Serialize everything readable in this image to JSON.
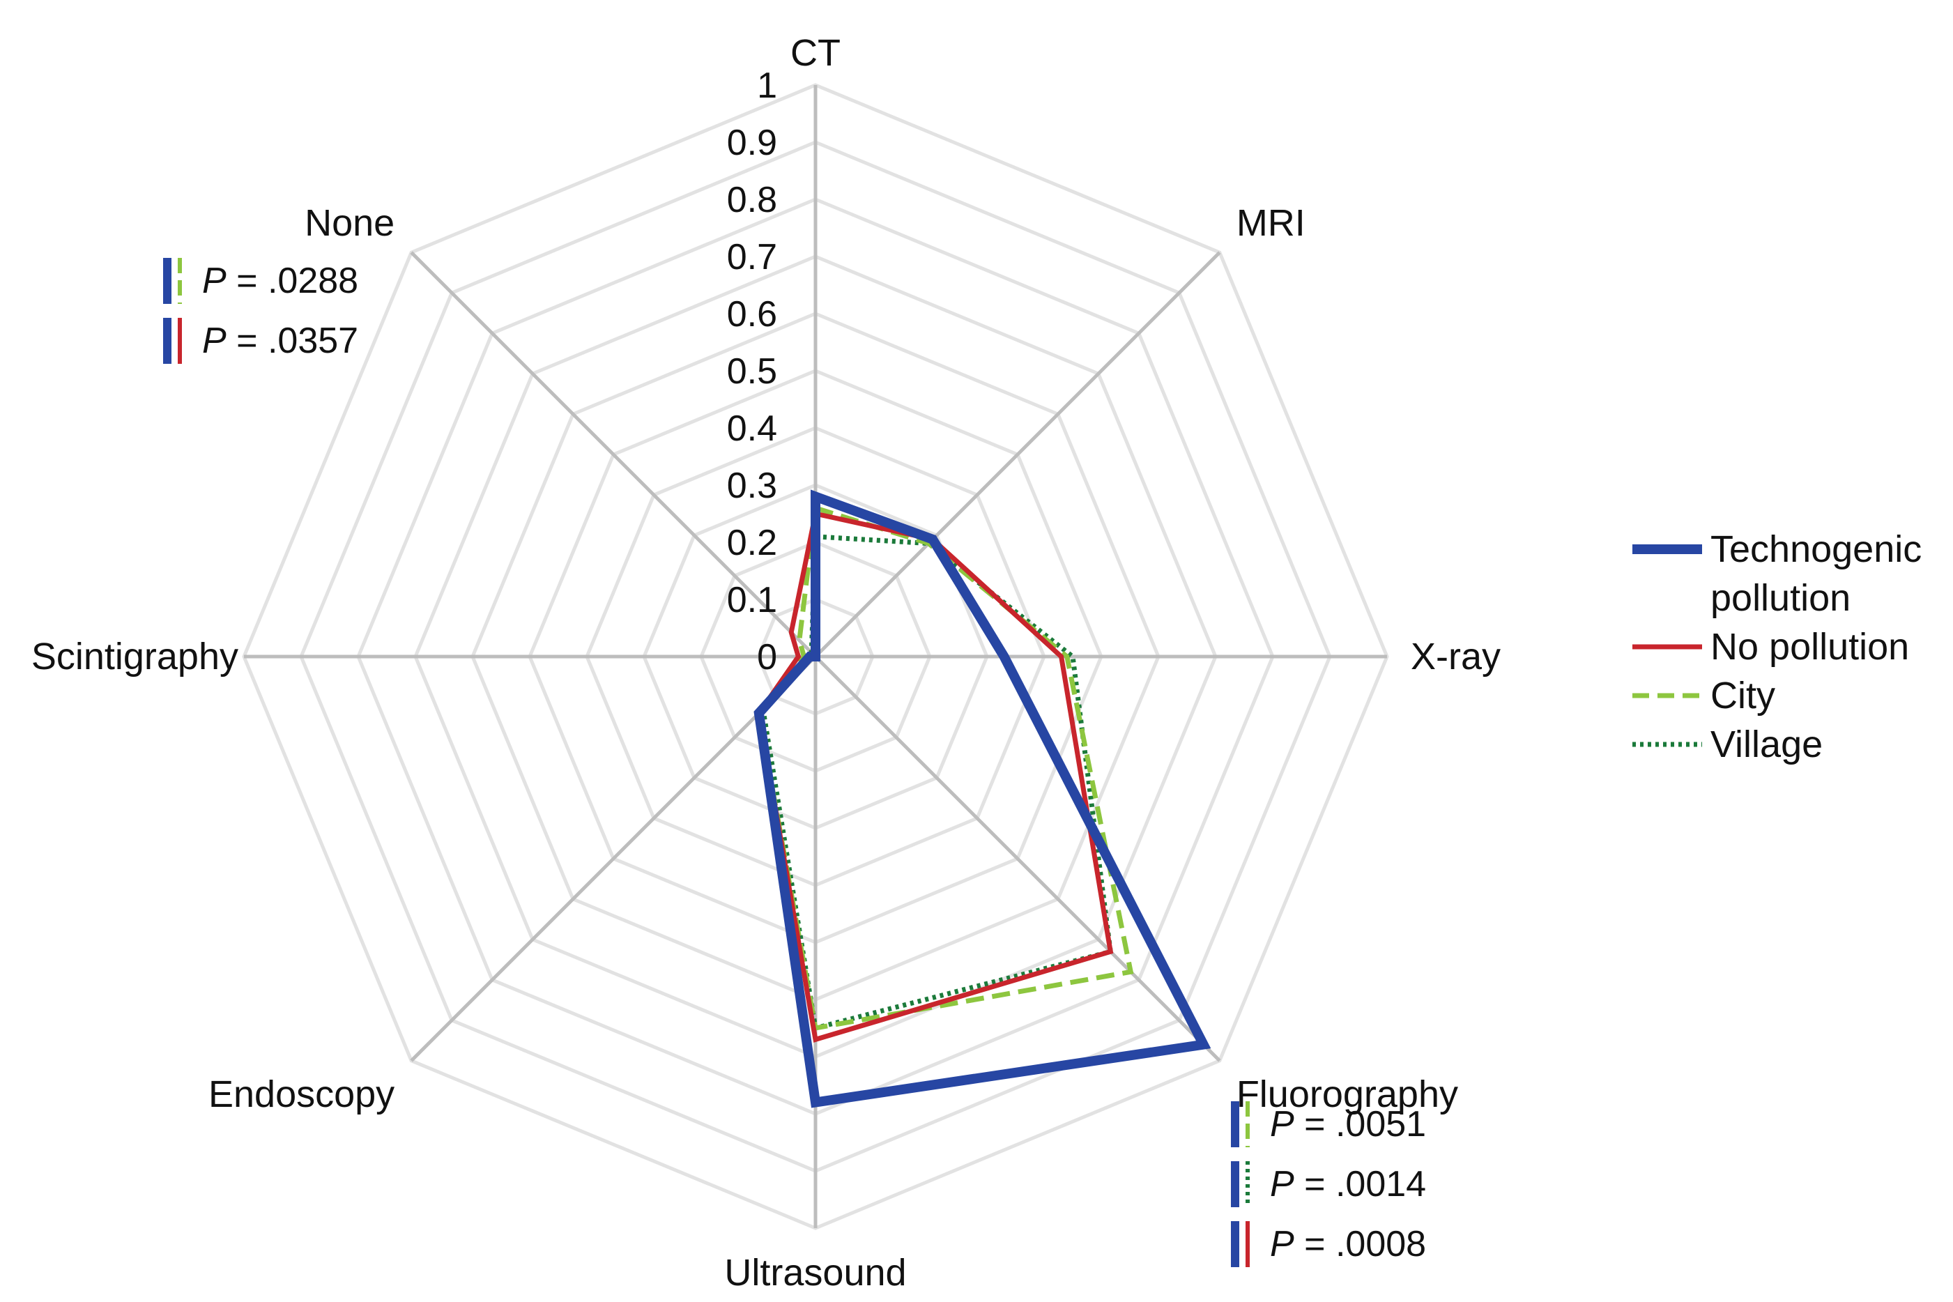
{
  "chart_data": {
    "type": "radar",
    "axes": [
      "CT",
      "MRI",
      "X-ray",
      "Fluorography",
      "Ultrasound",
      "Endoscopy",
      "Scintigraphy",
      "None"
    ],
    "tick_labels": [
      "0",
      "0.1",
      "0.2",
      "0.3",
      "0.4",
      "0.5",
      "0.6",
      "0.7",
      "0.8",
      "0.9",
      "1"
    ],
    "range": [
      0,
      1
    ],
    "series": [
      {
        "name": "Technogenic pollution",
        "color": "#2746a3",
        "style": "solid-thick",
        "values": [
          0.28,
          0.29,
          0.33,
          0.96,
          0.78,
          0.14,
          0.01,
          0.0
        ]
      },
      {
        "name": "No pollution",
        "color": "#c8252c",
        "style": "solid",
        "values": [
          0.25,
          0.29,
          0.43,
          0.73,
          0.67,
          0.14,
          0.03,
          0.06
        ]
      },
      {
        "name": "City",
        "color": "#8dc63f",
        "style": "dashed",
        "values": [
          0.26,
          0.28,
          0.44,
          0.78,
          0.65,
          0.14,
          0.02,
          0.04
        ]
      },
      {
        "name": "Village",
        "color": "#1b7a3a",
        "style": "dotted",
        "values": [
          0.21,
          0.28,
          0.45,
          0.73,
          0.65,
          0.13,
          0.01,
          0.01
        ]
      }
    ],
    "legend": {
      "position": "right",
      "entries": [
        {
          "lines": [
            "Technogenic",
            "pollution"
          ]
        },
        {
          "lines": [
            "No pollution"
          ]
        },
        {
          "lines": [
            "City"
          ]
        },
        {
          "lines": [
            "Village"
          ]
        }
      ]
    },
    "annotations": [
      {
        "axis": "None",
        "p_prefix": "P",
        "p_rest": " = .0288",
        "colors": [
          "#2746a3",
          "#8dc63f"
        ],
        "styles": [
          "solid",
          "dashed"
        ]
      },
      {
        "axis": "None",
        "p_prefix": "P",
        "p_rest": " = .0357",
        "colors": [
          "#2746a3",
          "#c8252c"
        ],
        "styles": [
          "solid",
          "solid"
        ]
      },
      {
        "axis": "Fluorography",
        "p_prefix": "P",
        "p_rest": " = .0051",
        "colors": [
          "#2746a3",
          "#8dc63f"
        ],
        "styles": [
          "solid",
          "dashed"
        ]
      },
      {
        "axis": "Fluorography",
        "p_prefix": "P",
        "p_rest": " = .0014",
        "colors": [
          "#2746a3",
          "#1b7a3a"
        ],
        "styles": [
          "solid",
          "dotted"
        ]
      },
      {
        "axis": "Fluorography",
        "p_prefix": "P",
        "p_rest": " = .0008",
        "colors": [
          "#2746a3",
          "#c8252c"
        ],
        "styles": [
          "solid",
          "solid"
        ]
      }
    ],
    "grid": true,
    "colors": {
      "grid": "#e2e2e2",
      "spoke": "#bdbdbd"
    }
  }
}
